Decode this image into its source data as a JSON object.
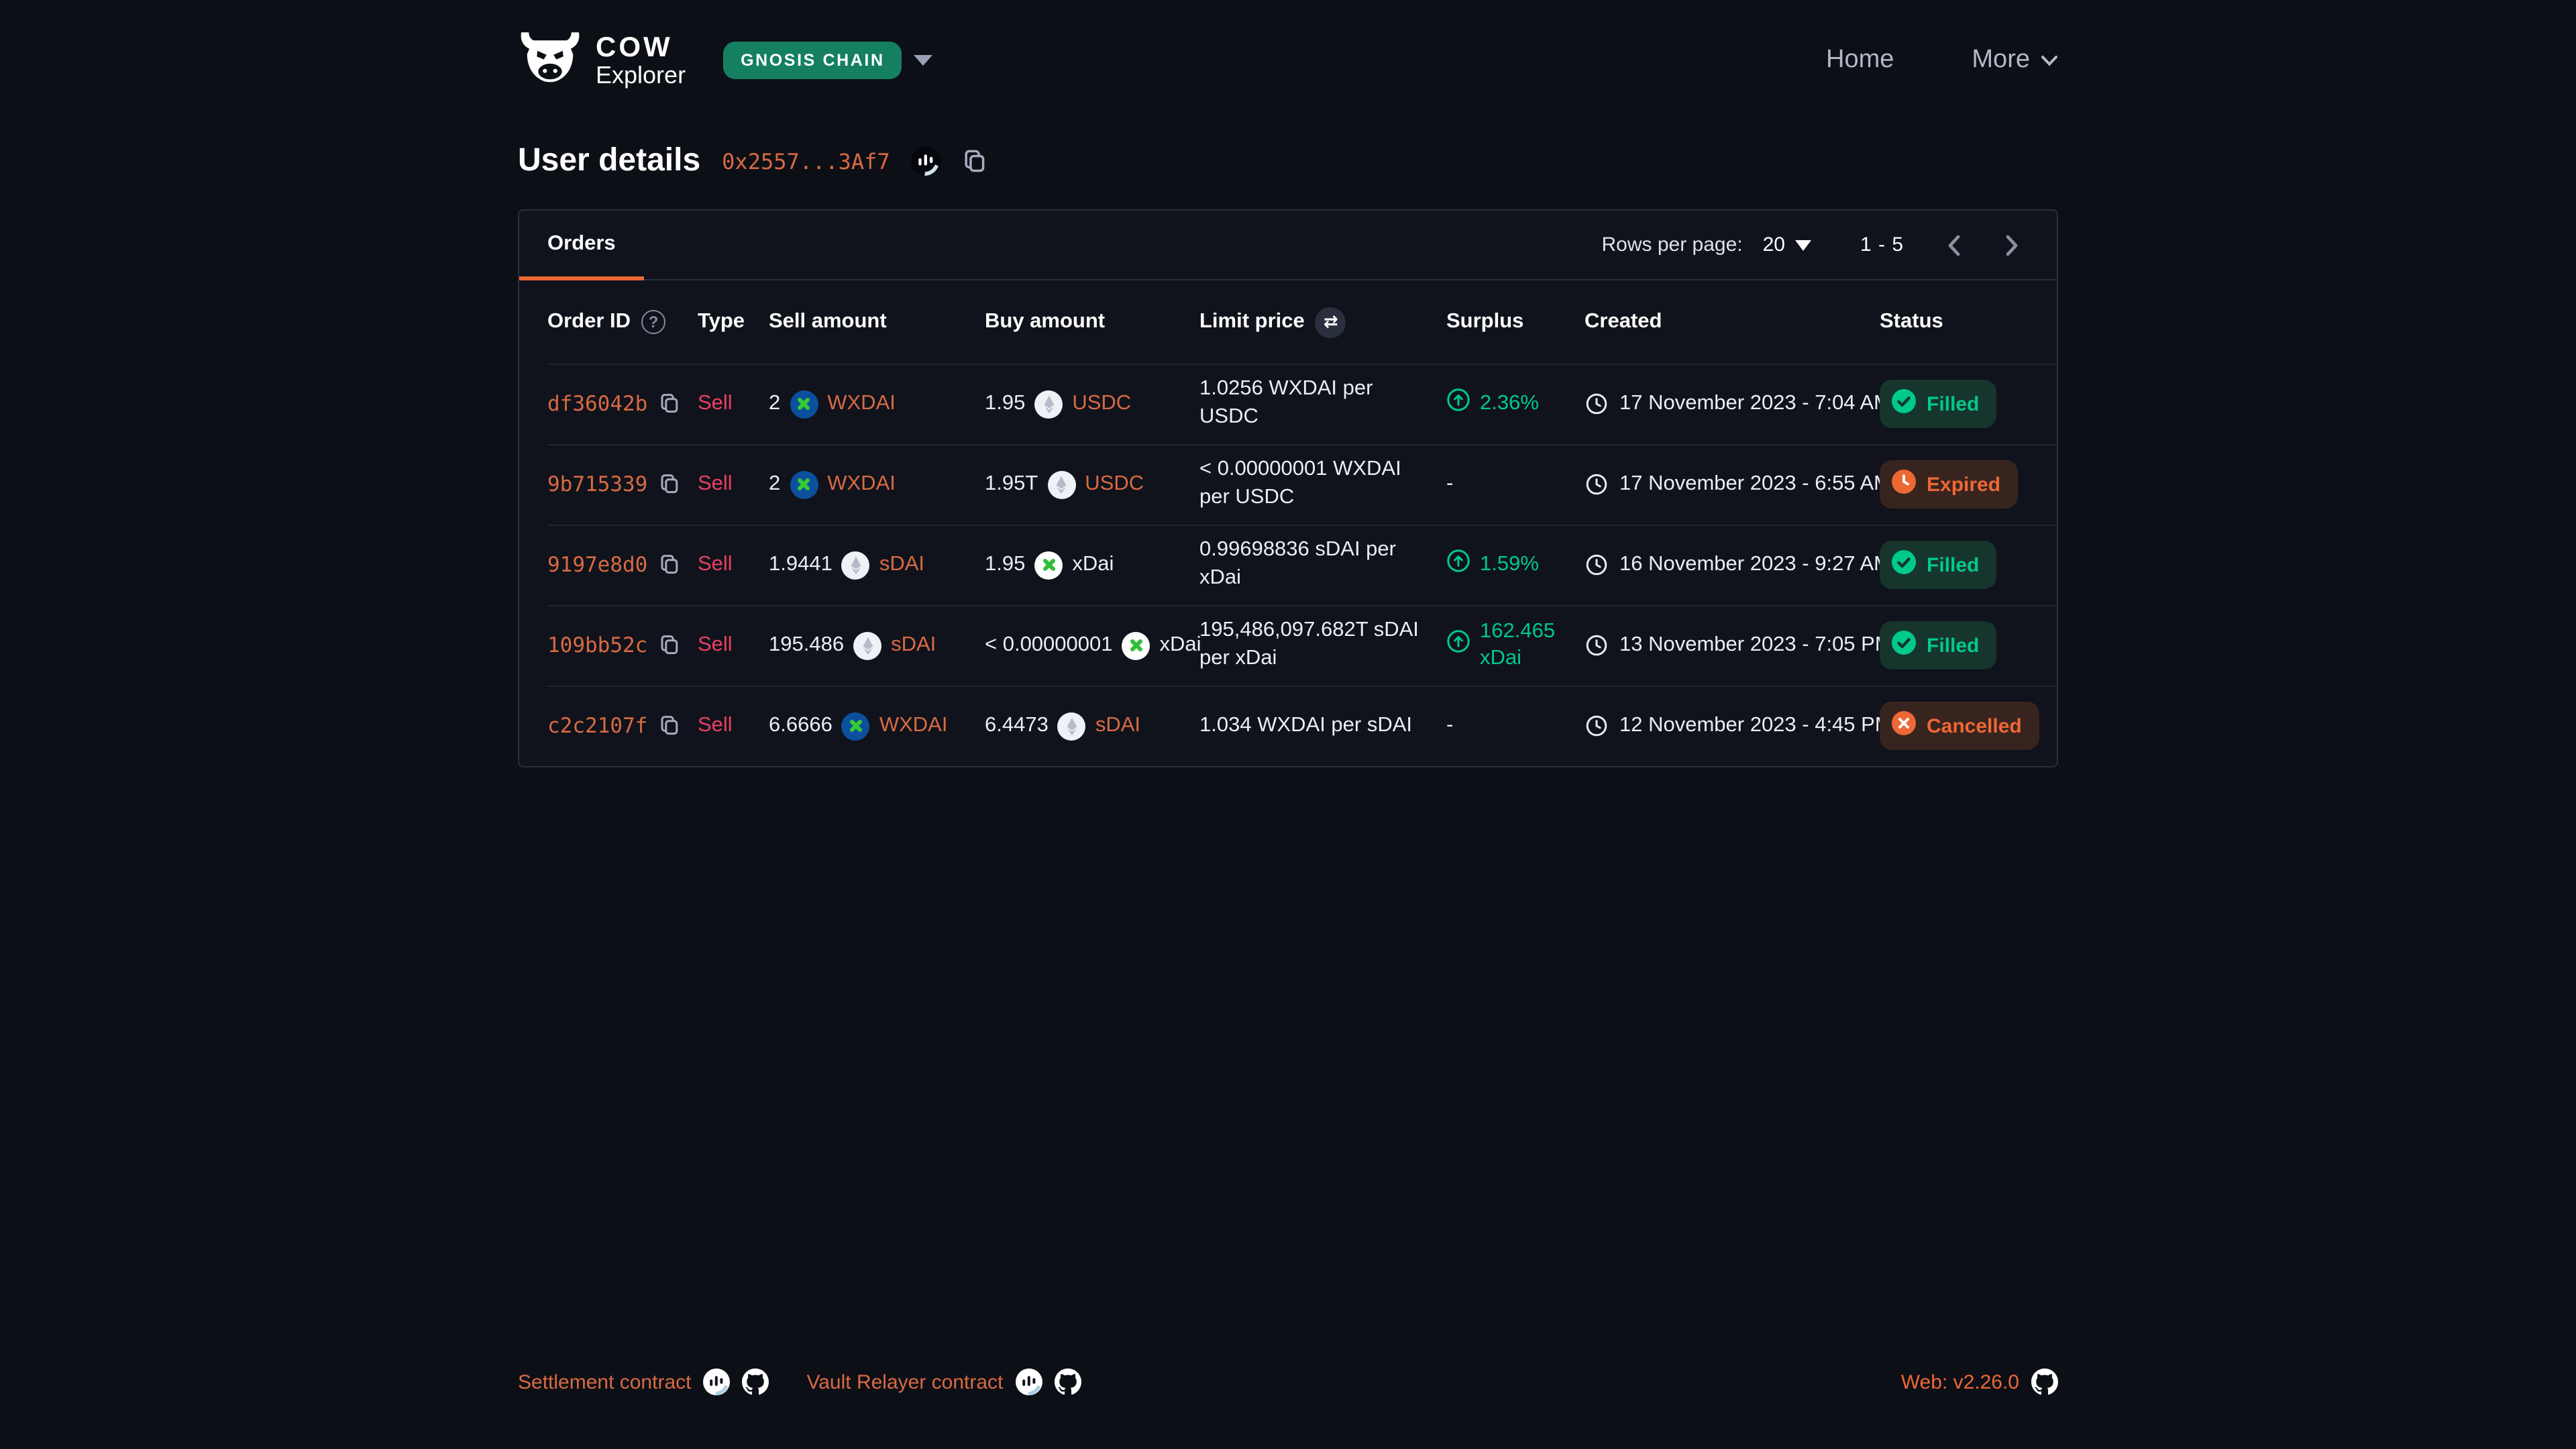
{
  "header": {
    "brand": {
      "name": "COW",
      "product": "Explorer"
    },
    "network_badge": "GNOSIS CHAIN",
    "nav": {
      "home": "Home",
      "more": "More"
    }
  },
  "page": {
    "title": "User details",
    "address": "0x2557...3Af7"
  },
  "panel": {
    "tab": "Orders",
    "rows_per_page_label": "Rows per page:",
    "rows_per_page_value": "20",
    "page_range": "1 - 5"
  },
  "table": {
    "columns": {
      "order_id": "Order ID",
      "type": "Type",
      "sell_amount": "Sell amount",
      "buy_amount": "Buy amount",
      "limit_price": "Limit price",
      "surplus": "Surplus",
      "created": "Created",
      "status": "Status"
    },
    "rows": [
      {
        "order_id": "df36042b",
        "type": "Sell",
        "sell": {
          "amount": "2",
          "token": "WXDAI",
          "icon": "wxdai",
          "link": true
        },
        "buy": {
          "amount": "1.95",
          "token": "USDC",
          "icon": "eth",
          "link": true
        },
        "limit_price": "1.0256 WXDAI per USDC",
        "surplus": "2.36%",
        "created": "17 November 2023 - 7:04 AM",
        "status": "Filled"
      },
      {
        "order_id": "9b715339",
        "type": "Sell",
        "sell": {
          "amount": "2",
          "token": "WXDAI",
          "icon": "wxdai",
          "link": true
        },
        "buy": {
          "amount": "1.95T",
          "token": "USDC",
          "icon": "eth",
          "link": true
        },
        "limit_price": "< 0.00000001 WXDAI per USDC",
        "surplus": null,
        "created": "17 November 2023 - 6:55 AM",
        "status": "Expired"
      },
      {
        "order_id": "9197e8d0",
        "type": "Sell",
        "sell": {
          "amount": "1.9441",
          "token": "sDAI",
          "icon": "eth",
          "link": true
        },
        "buy": {
          "amount": "1.95",
          "token": "xDai",
          "icon": "xdai",
          "link": false
        },
        "limit_price": "0.99698836 sDAI per xDai",
        "surplus": "1.59%",
        "created": "16 November 2023 - 9:27 AM",
        "status": "Filled"
      },
      {
        "order_id": "109bb52c",
        "type": "Sell",
        "sell": {
          "amount": "195.486",
          "token": "sDAI",
          "icon": "eth",
          "link": true
        },
        "buy": {
          "amount": "< 0.00000001",
          "token": "xDai",
          "icon": "xdai",
          "link": false
        },
        "limit_price": "195,486,097.682T sDAI per xDai",
        "surplus": "162.465 xDai",
        "created": "13 November 2023 - 7:05 PM",
        "status": "Filled"
      },
      {
        "order_id": "c2c2107f",
        "type": "Sell",
        "sell": {
          "amount": "6.6666",
          "token": "WXDAI",
          "icon": "wxdai",
          "link": true
        },
        "buy": {
          "amount": "6.4473",
          "token": "sDAI",
          "icon": "eth",
          "link": true
        },
        "limit_price": "1.034 WXDAI per sDAI",
        "surplus": null,
        "created": "12 November 2023 - 4:45 PM",
        "status": "Cancelled"
      }
    ]
  },
  "footer": {
    "settlement": "Settlement contract",
    "vault": "Vault Relayer contract",
    "version": "Web: v2.26.0"
  },
  "colors": {
    "background": "#0d0f16",
    "accent_orange": "#ed6834",
    "link_orange": "#d96a43",
    "sell_red": "#ec3f63",
    "positive_green": "#00c98c",
    "network_badge_green": "#157f62",
    "badge_filled_bg": "#16352c",
    "badge_warn_bg": "#38241f"
  }
}
